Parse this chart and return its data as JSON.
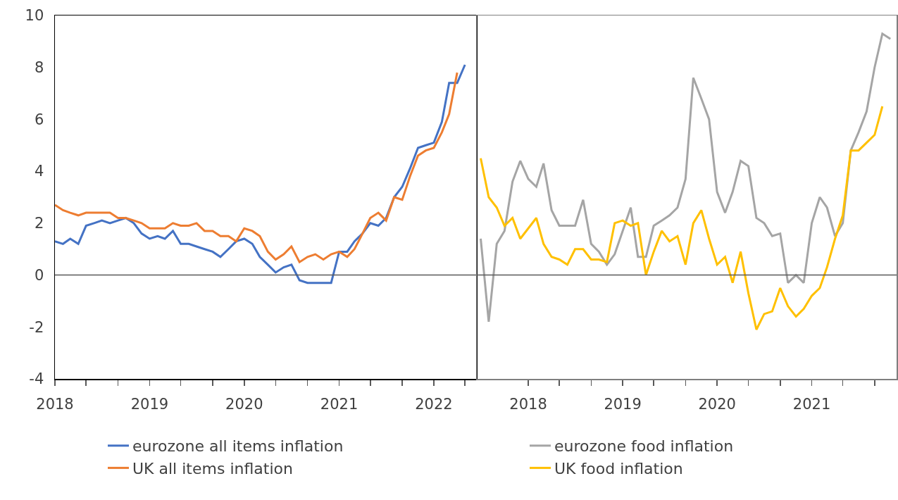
{
  "chart_data": [
    {
      "type": "line",
      "x": [
        "2018-01",
        "2018-02",
        "2018-03",
        "2018-04",
        "2018-05",
        "2018-06",
        "2018-07",
        "2018-08",
        "2018-09",
        "2018-10",
        "2018-11",
        "2018-12",
        "2019-01",
        "2019-02",
        "2019-03",
        "2019-04",
        "2019-05",
        "2019-06",
        "2019-07",
        "2019-08",
        "2019-09",
        "2019-10",
        "2019-11",
        "2019-12",
        "2020-01",
        "2020-02",
        "2020-03",
        "2020-04",
        "2020-05",
        "2020-06",
        "2020-07",
        "2020-08",
        "2020-09",
        "2020-10",
        "2020-11",
        "2020-12",
        "2021-01",
        "2021-02",
        "2021-03",
        "2021-04",
        "2021-05",
        "2021-06",
        "2021-07",
        "2021-08",
        "2021-09",
        "2021-10",
        "2021-11",
        "2021-12",
        "2022-01",
        "2022-02",
        "2022-03",
        "2022-04",
        "2022-05"
      ],
      "series": [
        {
          "name": "eurozone all items inflation",
          "color": "#4472c4",
          "values": [
            1.3,
            1.2,
            1.4,
            1.2,
            1.9,
            2.0,
            2.1,
            2.0,
            2.1,
            2.2,
            2.0,
            1.6,
            1.4,
            1.5,
            1.4,
            1.7,
            1.2,
            1.2,
            1.1,
            1.0,
            0.9,
            0.7,
            1.0,
            1.3,
            1.4,
            1.2,
            0.7,
            0.4,
            0.1,
            0.3,
            0.4,
            -0.2,
            -0.3,
            -0.3,
            -0.3,
            -0.3,
            0.9,
            0.9,
            1.3,
            1.6,
            2.0,
            1.9,
            2.2,
            3.0,
            3.4,
            4.1,
            4.9,
            5.0,
            5.1,
            5.9,
            7.4,
            7.4,
            8.1
          ]
        },
        {
          "name": "UK all items inflation",
          "color": "#ed7d31",
          "values": [
            2.7,
            2.5,
            2.4,
            2.3,
            2.4,
            2.4,
            2.4,
            2.4,
            2.2,
            2.2,
            2.1,
            2.0,
            1.8,
            1.8,
            1.8,
            2.0,
            1.9,
            1.9,
            2.0,
            1.7,
            1.7,
            1.5,
            1.5,
            1.3,
            1.8,
            1.7,
            1.5,
            0.9,
            0.6,
            0.8,
            1.1,
            0.5,
            0.7,
            0.8,
            0.6,
            0.8,
            0.9,
            0.7,
            1.0,
            1.6,
            2.2,
            2.4,
            2.1,
            3.0,
            2.9,
            3.8,
            4.6,
            4.8,
            4.9,
            5.5,
            6.2,
            7.8,
            null
          ]
        }
      ],
      "xlim": [
        "2018-01-01",
        "2022-06-13"
      ],
      "xticks": [
        {
          "value": "2018-01",
          "label": "2018"
        },
        {
          "value": "2018-05",
          "label": null
        },
        {
          "value": "2018-09",
          "label": null
        },
        {
          "value": "2019-01",
          "label": "2019"
        },
        {
          "value": "2019-05",
          "label": null
        },
        {
          "value": "2019-09",
          "label": null
        },
        {
          "value": "2020-01",
          "label": "2020"
        },
        {
          "value": "2020-05",
          "label": null
        },
        {
          "value": "2020-09",
          "label": null
        },
        {
          "value": "2021-01",
          "label": "2021"
        },
        {
          "value": "2021-05",
          "label": null
        },
        {
          "value": "2021-09",
          "label": null
        },
        {
          "value": "2022-01",
          "label": "2022"
        },
        {
          "value": "2022-05",
          "label": null
        }
      ],
      "ylim": [
        -4,
        10
      ],
      "yticks": [
        -4,
        -2,
        0,
        2,
        4,
        6,
        8,
        10
      ],
      "grid": false,
      "legend": "bottom",
      "ref_lines": [
        {
          "axis": "y",
          "value": 0,
          "color": "#595959"
        }
      ]
    },
    {
      "type": "line",
      "x": [
        "2017-07",
        "2017-08",
        "2017-09",
        "2017-10",
        "2017-11",
        "2017-12",
        "2018-01",
        "2018-02",
        "2018-03",
        "2018-04",
        "2018-05",
        "2018-06",
        "2018-07",
        "2018-08",
        "2018-09",
        "2018-10",
        "2018-11",
        "2018-12",
        "2019-01",
        "2019-02",
        "2019-03",
        "2019-04",
        "2019-05",
        "2019-06",
        "2019-07",
        "2019-08",
        "2019-09",
        "2019-10",
        "2019-11",
        "2019-12",
        "2020-01",
        "2020-02",
        "2020-03",
        "2020-04",
        "2020-05",
        "2020-06",
        "2020-07",
        "2020-08",
        "2020-09",
        "2020-10",
        "2020-11",
        "2020-12",
        "2021-01",
        "2021-02",
        "2021-03",
        "2021-04",
        "2021-05",
        "2021-06",
        "2021-07",
        "2021-08",
        "2021-09",
        "2021-10",
        "2021-11"
      ],
      "series": [
        {
          "name": "eurozone food inflation",
          "color": "#a5a5a5",
          "values": [
            1.4,
            -1.8,
            1.2,
            1.7,
            3.6,
            4.4,
            3.7,
            3.4,
            4.3,
            2.5,
            1.9,
            1.9,
            1.9,
            2.9,
            1.2,
            0.9,
            0.4,
            0.8,
            1.7,
            2.6,
            0.7,
            0.7,
            1.9,
            2.1,
            2.3,
            2.6,
            3.7,
            7.6,
            6.8,
            6.0,
            3.2,
            2.4,
            3.2,
            4.4,
            4.2,
            2.2,
            2.0,
            1.5,
            1.6,
            -0.3,
            0.0,
            -0.3,
            2.0,
            3.0,
            2.6,
            1.5,
            2.0,
            4.8,
            5.5,
            6.3,
            8.0,
            9.3,
            9.1
          ]
        },
        {
          "name": "UK food inflation",
          "color": "#ffc000",
          "values": [
            4.5,
            3.0,
            2.6,
            1.9,
            2.2,
            1.4,
            1.8,
            2.2,
            1.2,
            0.7,
            0.6,
            0.4,
            1.0,
            1.0,
            0.6,
            0.6,
            0.5,
            2.0,
            2.1,
            1.9,
            2.0,
            0.0,
            0.9,
            1.7,
            1.3,
            1.5,
            0.4,
            2.0,
            2.5,
            1.4,
            0.4,
            0.7,
            -0.3,
            0.9,
            -0.7,
            -2.1,
            -1.5,
            -1.4,
            -0.5,
            -1.2,
            -1.6,
            -1.3,
            -0.8,
            -0.5,
            0.3,
            1.4,
            2.3,
            4.8,
            4.8,
            5.1,
            5.4,
            6.5,
            null
          ]
        }
      ],
      "xlim": [
        "2017-06-16",
        "2021-11-25"
      ],
      "xticks": [
        {
          "value": "2018-01",
          "label": "2018"
        },
        {
          "value": "2018-05",
          "label": null
        },
        {
          "value": "2018-09",
          "label": null
        },
        {
          "value": "2019-01",
          "label": "2019"
        },
        {
          "value": "2019-05",
          "label": null
        },
        {
          "value": "2019-09",
          "label": null
        },
        {
          "value": "2020-01",
          "label": "2020"
        },
        {
          "value": "2020-05",
          "label": null
        },
        {
          "value": "2020-09",
          "label": null
        },
        {
          "value": "2021-01",
          "label": "2021"
        },
        {
          "value": "2021-05",
          "label": null
        },
        {
          "value": "2021-09",
          "label": null
        }
      ],
      "ylim": [
        -4,
        10
      ],
      "yticks": [
        -4,
        -2,
        0,
        2,
        4,
        6,
        8,
        10
      ],
      "grid": false,
      "legend": "bottom",
      "tick_labels": "x",
      "ref_lines": [
        {
          "axis": "y",
          "value": 0,
          "color": "#595959"
        }
      ]
    }
  ]
}
